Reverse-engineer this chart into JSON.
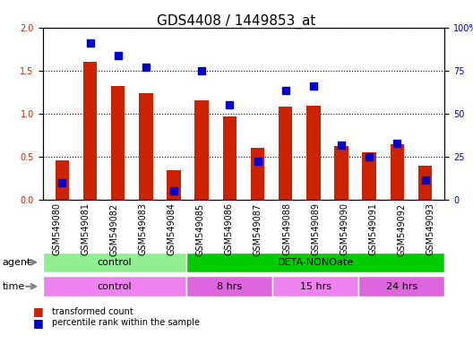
{
  "title": "GDS4408 / 1449853_at",
  "samples": [
    "GSM549080",
    "GSM549081",
    "GSM549082",
    "GSM549083",
    "GSM549084",
    "GSM549085",
    "GSM549086",
    "GSM549087",
    "GSM549088",
    "GSM549089",
    "GSM549090",
    "GSM549091",
    "GSM549092",
    "GSM549093"
  ],
  "red_values": [
    0.46,
    1.6,
    1.32,
    1.24,
    0.34,
    1.15,
    0.97,
    0.6,
    1.08,
    1.09,
    0.62,
    0.55,
    0.64,
    0.39
  ],
  "blue_values": [
    0.2,
    1.82,
    1.67,
    1.54,
    0.1,
    1.5,
    1.1,
    0.44,
    1.27,
    1.32,
    0.63,
    0.5,
    0.65,
    0.23
  ],
  "red_color": "#CC2200",
  "blue_color": "#0000CC",
  "ylim_left": [
    0,
    2
  ],
  "ylim_right": [
    0,
    100
  ],
  "yticks_left": [
    0,
    0.5,
    1.0,
    1.5,
    2.0
  ],
  "yticks_right": [
    0,
    25,
    50,
    75,
    100
  ],
  "ytick_labels_right": [
    "0",
    "25",
    "50",
    "75",
    "100%"
  ],
  "agent_row": [
    {
      "label": "control",
      "start": 0,
      "end": 4,
      "color": "#90EE90"
    },
    {
      "label": "DETA-NONOate",
      "start": 5,
      "end": 13,
      "color": "#00CC00"
    }
  ],
  "time_row": [
    {
      "label": "control",
      "start": 0,
      "end": 4,
      "color": "#EE82EE"
    },
    {
      "label": "8 hrs",
      "start": 5,
      "end": 7,
      "color": "#DD66DD"
    },
    {
      "label": "15 hrs",
      "start": 8,
      "end": 10,
      "color": "#EE82EE"
    },
    {
      "label": "24 hrs",
      "start": 11,
      "end": 13,
      "color": "#DD66DD"
    }
  ],
  "legend_red": "transformed count",
  "legend_blue": "percentile rank within the sample",
  "bar_width": 0.5,
  "title_fontsize": 11,
  "tick_fontsize": 7,
  "label_fontsize": 8,
  "bg_color": "#E8E8E8"
}
